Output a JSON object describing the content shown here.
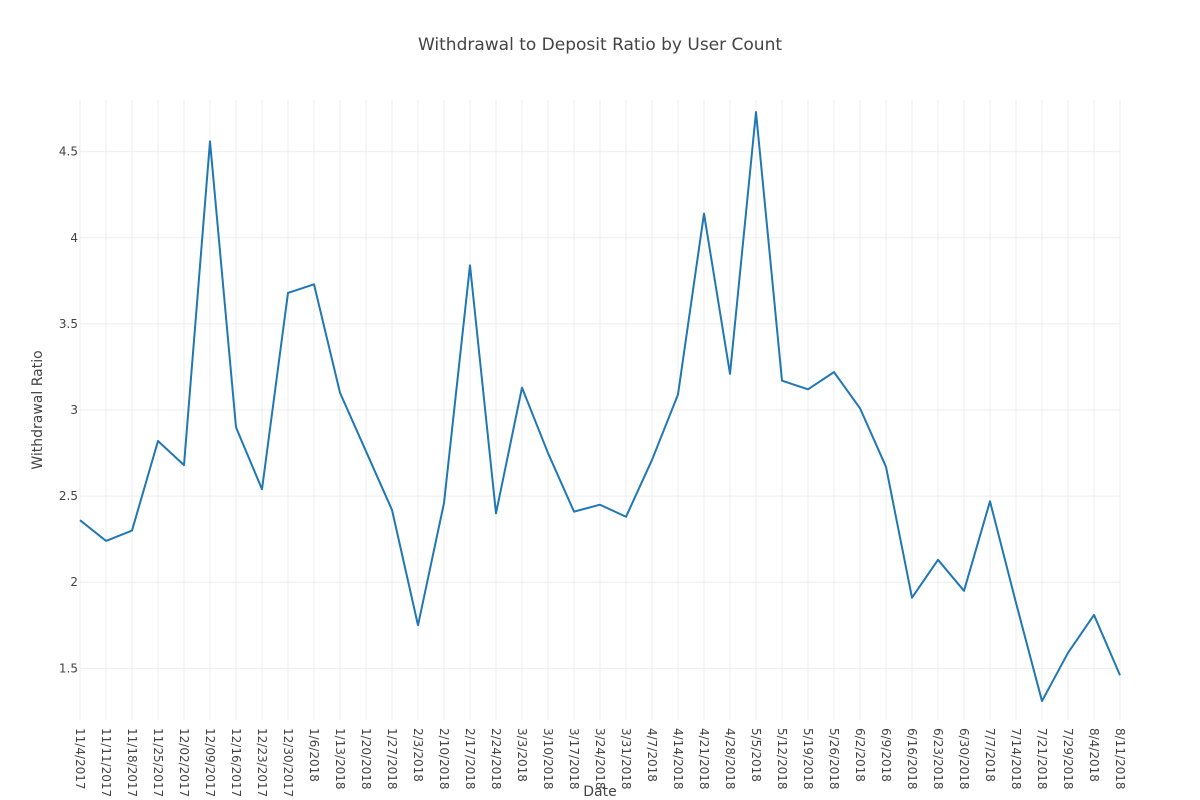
{
  "chart_data": {
    "type": "line",
    "title": "Withdrawal to Deposit Ratio by User Count",
    "xlabel": "Date",
    "ylabel": "Withdrawal Ratio",
    "ylim": [
      1.2,
      4.8
    ],
    "yticks": [
      1.5,
      2,
      2.5,
      3,
      3.5,
      4,
      4.5
    ],
    "ytick_labels": [
      "1.5",
      "2",
      "2.5",
      "3",
      "3.5",
      "4",
      "4.5"
    ],
    "grid": true,
    "legend": "none",
    "x": [
      "11/4/2017",
      "11/11/2017",
      "11/18/2017",
      "11/25/2017",
      "12/02/2017",
      "12/09/2017",
      "12/16/2017",
      "12/23/2017",
      "12/30/2017",
      "1/6/2018",
      "1/13/2018",
      "1/20/2018",
      "1/27/2018",
      "2/3/2018",
      "2/10/2018",
      "2/17/2018",
      "2/24/2018",
      "3/3/2018",
      "3/10/2018",
      "3/17/2018",
      "3/24/2018",
      "3/31/2018",
      "4/7/2018",
      "4/14/2018",
      "4/21/2018",
      "4/28/2018",
      "5/5/2018",
      "5/12/2018",
      "5/19/2018",
      "5/26/2018",
      "6/2/2018",
      "6/9/2018",
      "6/16/2018",
      "6/23/2018",
      "6/30/2018",
      "7/7/2018",
      "7/14/2018",
      "7/21/2018",
      "7/29/2018",
      "8/4/2018",
      "8/11/2018"
    ],
    "values": [
      2.36,
      2.24,
      2.3,
      2.82,
      2.68,
      4.56,
      2.9,
      2.54,
      3.68,
      3.73,
      3.1,
      2.76,
      2.42,
      1.75,
      2.46,
      3.84,
      2.4,
      3.13,
      2.75,
      2.41,
      2.45,
      2.38,
      2.71,
      3.09,
      4.14,
      3.21,
      4.73,
      3.17,
      3.12,
      3.22,
      3.01,
      2.67,
      1.91,
      2.13,
      1.95,
      2.47,
      1.88,
      1.31,
      1.59,
      1.81,
      1.46
    ],
    "color": "#1f77b4"
  }
}
